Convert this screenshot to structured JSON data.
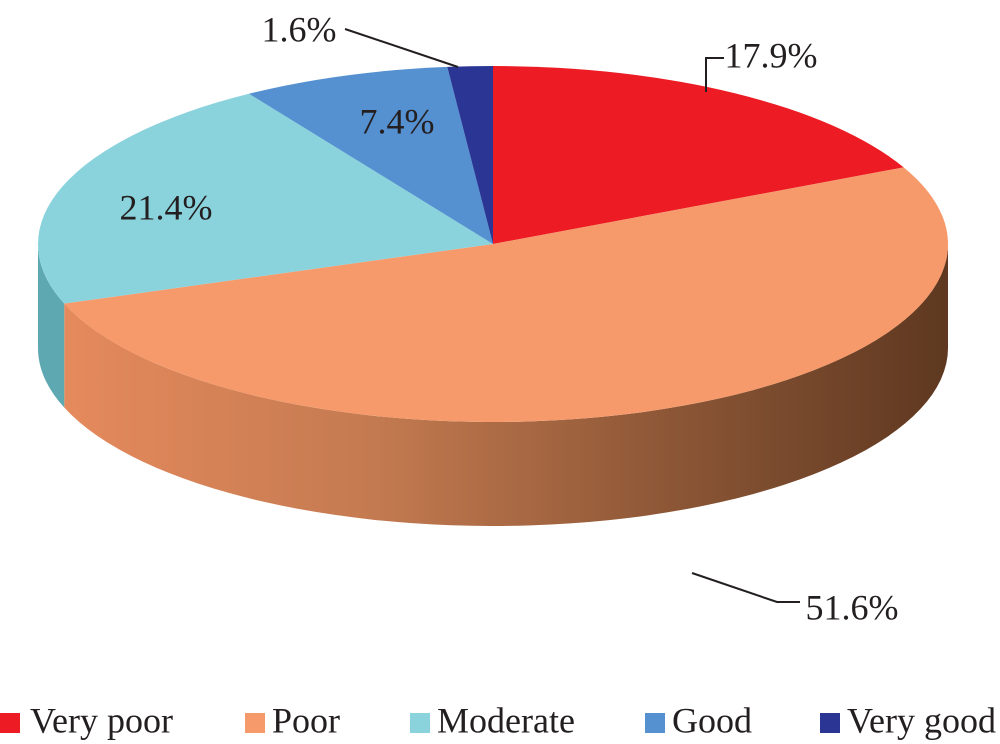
{
  "chart_data": {
    "type": "pie",
    "style": "3d",
    "title": "",
    "categories": [
      "Very poor",
      "Poor",
      "Moderate",
      "Good",
      "Very good"
    ],
    "values": [
      17.9,
      51.6,
      21.4,
      7.4,
      1.6
    ],
    "labels": [
      "17.9%",
      "51.6%",
      "21.4%",
      "7.4%",
      "1.6%"
    ],
    "colors": [
      "#ed1c24",
      "#f79a6b",
      "#8ad3dd",
      "#5590d0",
      "#2b3694"
    ],
    "side_colors": [
      "#c1141a",
      "#a26041",
      "#5ea8b2",
      "#3a6aa3",
      "#1d2566"
    ],
    "start_direction": "twelve-o'clock",
    "direction": "clockwise",
    "legend_position": "bottom"
  }
}
